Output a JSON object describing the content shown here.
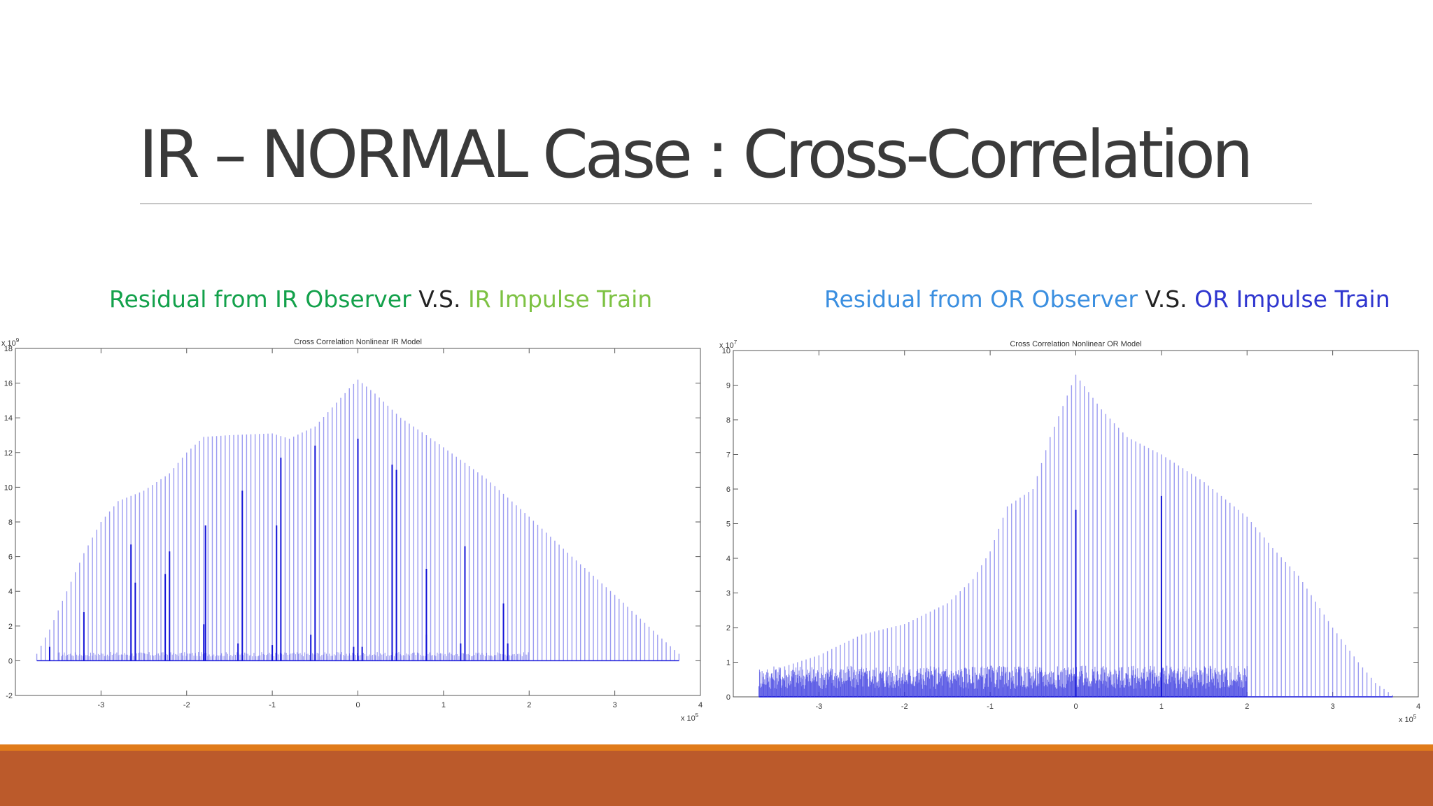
{
  "slide": {
    "title": "IR – NORMAL Case : Cross-Correlation"
  },
  "captions": {
    "left": {
      "part1": "Residual from IR Observer",
      "vs": "V.S.",
      "part2": "IR Impulse Train",
      "color1": "#13a14b",
      "color2": "#7dc243"
    },
    "right": {
      "part1": "Residual from OR Observer",
      "vs": "V.S.",
      "part2": "OR Impulse Train",
      "color1": "#3b8fe0",
      "color2": "#2f36cf"
    }
  },
  "theme": {
    "footer_stripe": "#e07b1a",
    "footer_band": "#bb5a2b",
    "stem_color": "#4a4ae6",
    "dense_color": "#1414d8"
  },
  "chart_data": [
    {
      "type": "stem",
      "title": "Cross Correlation Nonlinear IR Model",
      "xlim": [
        -4,
        4
      ],
      "ylim": [
        -2,
        18
      ],
      "x_multiplier": "x 10^5",
      "y_multiplier": "x 10^9",
      "xticks": [
        -3,
        -2,
        -1,
        0,
        1,
        2,
        3
      ],
      "yticks": [
        -2,
        0,
        2,
        4,
        6,
        8,
        10,
        12,
        14,
        16,
        18
      ],
      "envelope": [
        [
          -3.75,
          0.4
        ],
        [
          -3.6,
          1.8
        ],
        [
          -3.4,
          4.0
        ],
        [
          -3.2,
          6.2
        ],
        [
          -3.0,
          8.0
        ],
        [
          -2.8,
          9.2
        ],
        [
          -2.5,
          9.8
        ],
        [
          -2.2,
          10.8
        ],
        [
          -2.0,
          12.0
        ],
        [
          -1.8,
          12.9
        ],
        [
          -1.5,
          13.0
        ],
        [
          -1.0,
          13.1
        ],
        [
          -0.8,
          12.8
        ],
        [
          -0.5,
          13.5
        ],
        [
          -0.3,
          14.6
        ],
        [
          -0.1,
          15.7
        ],
        [
          0.0,
          16.2
        ],
        [
          0.2,
          15.4
        ],
        [
          0.5,
          14.0
        ],
        [
          0.8,
          13.0
        ],
        [
          1.0,
          12.3
        ],
        [
          1.5,
          10.5
        ],
        [
          2.0,
          8.3
        ],
        [
          2.5,
          6.0
        ],
        [
          3.0,
          3.8
        ],
        [
          3.5,
          1.5
        ],
        [
          3.75,
          0.4
        ]
      ],
      "stem_spacing": 0.05,
      "highlighted_spikes": [
        [
          -3.6,
          0.8
        ],
        [
          -3.2,
          2.8
        ],
        [
          -2.65,
          6.7
        ],
        [
          -2.6,
          4.5
        ],
        [
          -2.25,
          5.0
        ],
        [
          -2.2,
          6.3
        ],
        [
          -1.8,
          2.1
        ],
        [
          -1.78,
          7.8
        ],
        [
          -1.4,
          1.0
        ],
        [
          -1.35,
          9.8
        ],
        [
          -1.0,
          0.9
        ],
        [
          -0.95,
          7.8
        ],
        [
          -0.9,
          11.7
        ],
        [
          -0.55,
          1.5
        ],
        [
          -0.5,
          12.4
        ],
        [
          -0.05,
          0.8
        ],
        [
          0.0,
          12.8
        ],
        [
          0.05,
          0.8
        ],
        [
          0.4,
          11.3
        ],
        [
          0.45,
          11.0
        ],
        [
          0.8,
          1.5
        ],
        [
          0.8,
          5.3
        ],
        [
          1.2,
          1.0
        ],
        [
          1.25,
          6.6
        ],
        [
          1.7,
          3.3
        ],
        [
          1.75,
          1.0
        ]
      ],
      "noise_band": {
        "x_range": [
          -3.5,
          2.0
        ],
        "level": 0.5
      }
    },
    {
      "type": "stem",
      "title": "Cross Correlation Nonlinear OR Model",
      "xlim": [
        -4,
        4
      ],
      "ylim": [
        0,
        10
      ],
      "x_multiplier": "x 10^5",
      "y_multiplier": "x 10^7",
      "xticks": [
        -3,
        -2,
        -1,
        0,
        1,
        2,
        3
      ],
      "yticks": [
        0,
        1,
        2,
        3,
        4,
        5,
        6,
        7,
        8,
        9,
        10
      ],
      "envelope": [
        [
          -3.7,
          0.3
        ],
        [
          -3.5,
          0.8
        ],
        [
          -3.0,
          1.2
        ],
        [
          -2.5,
          1.8
        ],
        [
          -2.0,
          2.1
        ],
        [
          -1.5,
          2.7
        ],
        [
          -1.2,
          3.4
        ],
        [
          -1.0,
          4.2
        ],
        [
          -0.8,
          5.5
        ],
        [
          -0.5,
          6.0
        ],
        [
          -0.3,
          7.5
        ],
        [
          -0.1,
          8.7
        ],
        [
          0.0,
          9.3
        ],
        [
          0.3,
          8.3
        ],
        [
          0.6,
          7.5
        ],
        [
          1.0,
          7.0
        ],
        [
          1.5,
          6.2
        ],
        [
          2.0,
          5.2
        ],
        [
          2.3,
          4.3
        ],
        [
          2.6,
          3.5
        ],
        [
          3.0,
          2.0
        ],
        [
          3.3,
          1.0
        ],
        [
          3.5,
          0.4
        ],
        [
          3.7,
          0.05
        ]
      ],
      "stem_spacing": 0.05,
      "highlighted_spikes": [
        [
          0.0,
          5.4
        ],
        [
          1.0,
          5.8
        ]
      ],
      "noise_band": {
        "x_range": [
          -3.7,
          2.0
        ],
        "level": 0.9
      }
    }
  ]
}
